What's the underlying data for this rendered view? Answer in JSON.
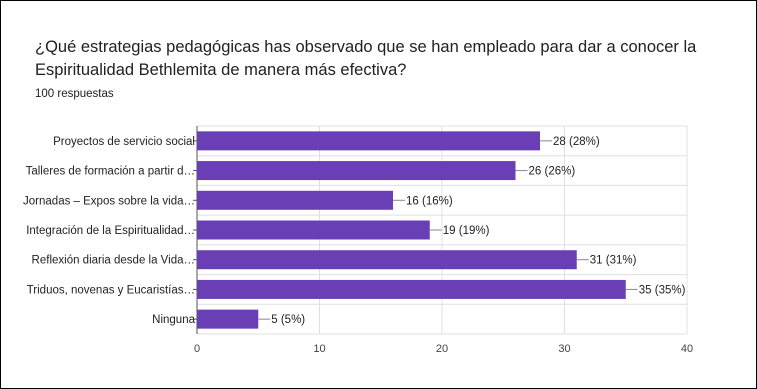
{
  "header": {
    "title": "¿Qué estrategias pedagógicas has observado que se han empleado para dar a conocer la Espiritualidad Bethlemita de manera más efectiva?",
    "subtitle": "100 respuestas"
  },
  "colors": {
    "bar": "#6a3fb5",
    "grid": "#e0e0e0",
    "leader": "#888888"
  },
  "chart_data": {
    "type": "bar",
    "orientation": "horizontal",
    "categories": [
      "Proyectos de servicio social",
      "Talleres de formación a partir d…",
      "Jornadas – Expos sobre la vida…",
      "Integración de la Espiritualidad…",
      "Reflexión diaria desde la Vida…",
      "Triduos, novenas y Eucaristías…",
      "Ninguna"
    ],
    "values": [
      28,
      26,
      16,
      19,
      31,
      35,
      5
    ],
    "data_labels": [
      "28 (28%)",
      "26 (26%)",
      "16 (16%)",
      "19 (19%)",
      "31 (31%)",
      "35 (35%)",
      "5 (5%)"
    ],
    "xlim": [
      0,
      40
    ],
    "xticks": [
      0,
      10,
      20,
      30,
      40
    ],
    "grid": true,
    "legend": "none"
  }
}
